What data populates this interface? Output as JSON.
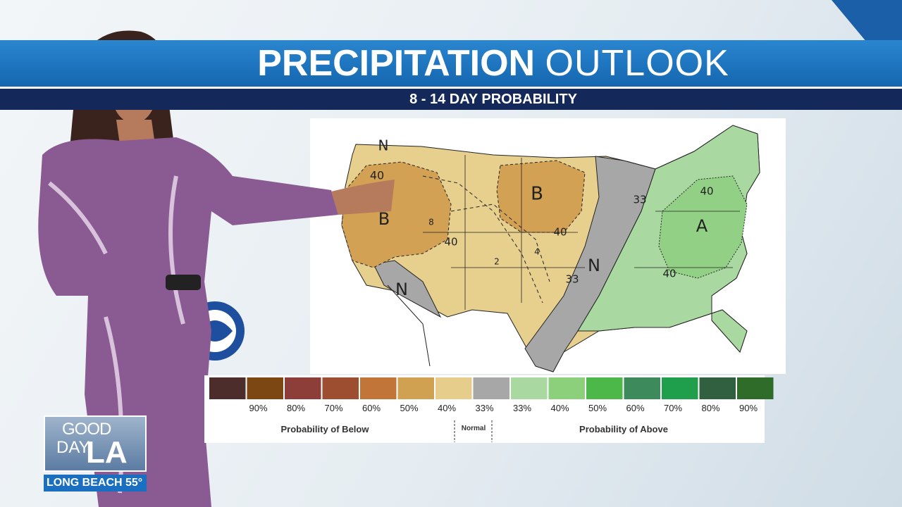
{
  "header": {
    "title_bold": "PRECIPITATION",
    "title_light": "OUTLOOK",
    "subtitle": "8 - 14 DAY PROBABILITY"
  },
  "map": {
    "labels": [
      "N",
      "40",
      "B",
      "8",
      "40",
      "2",
      "4",
      "B",
      "40",
      "N",
      "N",
      "33",
      "33",
      "40",
      "A",
      "40"
    ]
  },
  "legend": {
    "colors": [
      "#4d2c2c",
      "#7c4712",
      "#8e3e38",
      "#9d4d30",
      "#c27538",
      "#d0a150",
      "#e6cd8c",
      "#a7a7a7",
      "#a9d9a1",
      "#8dd07c",
      "#4db84a",
      "#3d8b5d",
      "#1f9f4c",
      "#30603f",
      "#2f6b29"
    ],
    "labels": [
      "90%",
      "80%",
      "70%",
      "60%",
      "50%",
      "40%",
      "33%",
      "33%",
      "40%",
      "50%",
      "60%",
      "70%",
      "80%",
      "90%"
    ],
    "below": "Probability of Below",
    "normal": "Normal",
    "above": "Probability of Above"
  },
  "logo": {
    "line1": "GOOD",
    "line2": "DAY",
    "line3": "LA",
    "location": "LONG BEACH",
    "temperature": "55°"
  }
}
